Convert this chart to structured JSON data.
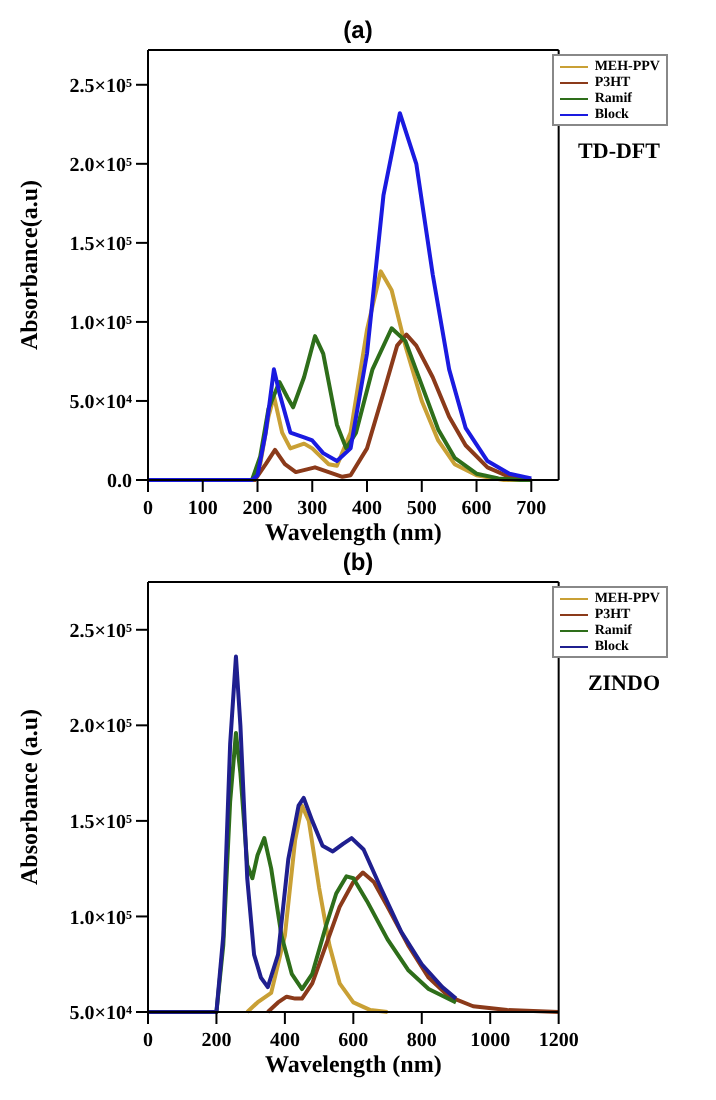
{
  "chart_data": [
    {
      "type": "line",
      "title": "(a)",
      "xlabel": "Wavelength (nm)",
      "ylabel": "Absorbance(a.u)",
      "marker": "none",
      "legend": "top right",
      "annotations": [
        "TD-DFT"
      ],
      "xlim": [
        0,
        750
      ],
      "xticks": [
        0,
        100,
        200,
        300,
        400,
        500,
        600,
        700
      ],
      "ylim": [
        0,
        272000
      ],
      "yticks": [
        {
          "value": 0,
          "label": "0.0"
        },
        {
          "value": 50000,
          "label": "5.0×10⁴"
        },
        {
          "value": 100000,
          "label": "1.0×10⁵"
        },
        {
          "value": 150000,
          "label": "1.5×10⁵"
        },
        {
          "value": 200000,
          "label": "2.0×10⁵"
        },
        {
          "value": 250000,
          "label": "2.5×10⁵"
        }
      ],
      "series": [
        {
          "name": "MEH-PPV",
          "color": "#c9a035",
          "x": [
            0,
            190,
            205,
            220,
            230,
            245,
            260,
            285,
            300,
            330,
            345,
            370,
            400,
            425,
            445,
            470,
            500,
            530,
            560,
            600,
            650,
            700
          ],
          "values": [
            0,
            0,
            10000,
            40000,
            53000,
            30000,
            20000,
            23000,
            20000,
            10000,
            9000,
            30000,
            95000,
            132000,
            120000,
            85000,
            50000,
            25000,
            10000,
            3000,
            0,
            0
          ]
        },
        {
          "name": "P3HT",
          "color": "#8b3a1a",
          "x": [
            0,
            195,
            215,
            232,
            250,
            270,
            305,
            330,
            355,
            370,
            400,
            430,
            455,
            472,
            490,
            520,
            550,
            580,
            620,
            660,
            700
          ],
          "values": [
            0,
            0,
            10000,
            19000,
            10000,
            5000,
            8000,
            5000,
            2000,
            3000,
            20000,
            55000,
            85000,
            92000,
            85000,
            65000,
            40000,
            22000,
            8000,
            2000,
            0
          ]
        },
        {
          "name": "Ramif",
          "color": "#2e6e1a",
          "x": [
            0,
            190,
            205,
            220,
            240,
            255,
            265,
            285,
            305,
            320,
            345,
            362,
            380,
            410,
            445,
            470,
            500,
            530,
            560,
            600,
            640,
            680,
            700
          ],
          "values": [
            0,
            0,
            15000,
            45000,
            62000,
            52000,
            46000,
            65000,
            91000,
            80000,
            35000,
            20000,
            30000,
            70000,
            96000,
            88000,
            60000,
            32000,
            14000,
            4000,
            1000,
            0,
            0
          ]
        },
        {
          "name": "Block",
          "color": "#1a1ae0",
          "x": [
            0,
            190,
            200,
            215,
            230,
            240,
            260,
            285,
            300,
            320,
            345,
            370,
            400,
            430,
            460,
            490,
            520,
            550,
            580,
            620,
            660,
            700
          ],
          "values": [
            0,
            0,
            3000,
            30000,
            70000,
            55000,
            30000,
            27000,
            25000,
            17000,
            12000,
            20000,
            80000,
            180000,
            232000,
            200000,
            130000,
            70000,
            33000,
            12000,
            4000,
            1000
          ]
        }
      ]
    },
    {
      "type": "line",
      "title": "(b)",
      "xlabel": "Wavelength (nm)",
      "ylabel": "Absorbance (a.u)",
      "marker": "none",
      "legend": "top right",
      "annotations": [
        "ZINDO"
      ],
      "xlim": [
        0,
        1200
      ],
      "xticks": [
        0,
        200,
        400,
        600,
        800,
        1000,
        1200
      ],
      "ylim": [
        50000,
        275000
      ],
      "yticks": [
        {
          "value": 50000,
          "label": "5.0×10⁴"
        },
        {
          "value": 100000,
          "label": "1.0×10⁵"
        },
        {
          "value": 150000,
          "label": "1.5×10⁵"
        },
        {
          "value": 200000,
          "label": "2.0×10⁵"
        },
        {
          "value": 250000,
          "label": "2.5×10⁵"
        }
      ],
      "series": [
        {
          "name": "MEH-PPV",
          "color": "#c9a035",
          "x": [
            290,
            320,
            360,
            400,
            430,
            450,
            470,
            500,
            530,
            560,
            600,
            650,
            700
          ],
          "values": [
            50000,
            55000,
            60000,
            90000,
            140000,
            158000,
            150000,
            115000,
            85000,
            65000,
            55000,
            51000,
            50000
          ]
        },
        {
          "name": "P3HT",
          "color": "#8b3a1a",
          "x": [
            350,
            380,
            405,
            430,
            450,
            480,
            520,
            560,
            600,
            628,
            660,
            700,
            760,
            820,
            880,
            950,
            1050,
            1200
          ],
          "values": [
            50000,
            55000,
            58000,
            57000,
            57000,
            65000,
            85000,
            105000,
            118000,
            123000,
            118000,
            105000,
            85000,
            68000,
            58000,
            53000,
            51000,
            50000
          ]
        },
        {
          "name": "Ramif",
          "color": "#2e6e1a",
          "x": [
            0,
            200,
            220,
            240,
            257,
            270,
            290,
            305,
            320,
            340,
            360,
            390,
            420,
            450,
            480,
            520,
            550,
            580,
            600,
            640,
            700,
            760,
            820,
            900
          ],
          "values": [
            50000,
            50000,
            85000,
            160000,
            196000,
            175000,
            127000,
            120000,
            132000,
            141000,
            125000,
            90000,
            70000,
            62000,
            70000,
            95000,
            112000,
            121000,
            120000,
            108000,
            88000,
            72000,
            62000,
            55000
          ]
        },
        {
          "name": "Block",
          "color": "#1f1f8f",
          "x": [
            0,
            200,
            220,
            240,
            257,
            270,
            290,
            310,
            330,
            350,
            380,
            410,
            440,
            455,
            480,
            510,
            540,
            570,
            595,
            630,
            680,
            740,
            800,
            860,
            900
          ],
          "values": [
            50000,
            50000,
            90000,
            190000,
            236000,
            200000,
            120000,
            80000,
            68000,
            63000,
            80000,
            130000,
            158000,
            162000,
            150000,
            137000,
            134000,
            138000,
            141000,
            135000,
            115000,
            92000,
            75000,
            63000,
            57000
          ]
        }
      ]
    }
  ]
}
